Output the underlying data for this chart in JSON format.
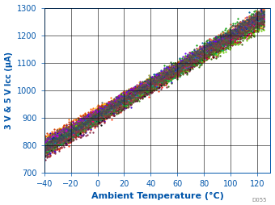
{
  "title": "",
  "xlabel": "Ambient Temperature (°C)",
  "ylabel": "3 V & 5 V Iᴄᴄ (μA)",
  "xlim": [
    -40,
    130
  ],
  "ylim": [
    700,
    1300
  ],
  "xticks": [
    -40,
    -20,
    0,
    20,
    40,
    60,
    80,
    100,
    120
  ],
  "yticks": [
    700,
    800,
    900,
    1000,
    1100,
    1200,
    1300
  ],
  "num_traces": 50,
  "temp_range": [
    -40,
    125
  ],
  "icc_at_25_mean": 975,
  "icc_slope_mean": 2.85,
  "icc_spread": 25,
  "noise_sigma": 6,
  "colors": [
    "#CC0000",
    "#FF0000",
    "#FF3300",
    "#FF6600",
    "#FF9900",
    "#FFCC00",
    "#999900",
    "#666600",
    "#336600",
    "#006600",
    "#009900",
    "#00CC00",
    "#006633",
    "#006666",
    "#006699",
    "#0066CC",
    "#0000CC",
    "#0000FF",
    "#3300CC",
    "#660099",
    "#990066",
    "#CC0033",
    "#993300",
    "#CC6600",
    "#999933",
    "#336633",
    "#003366",
    "#330066",
    "#660033",
    "#000000",
    "#CC3300",
    "#FF6633",
    "#CCCC00",
    "#66CC00",
    "#00CC66",
    "#00CCCC",
    "#0066FF",
    "#6600FF",
    "#CC00CC",
    "#FF0066",
    "#804020",
    "#208040",
    "#204080",
    "#802040",
    "#408020",
    "#604040",
    "#406040",
    "#404060",
    "#606040",
    "#804040"
  ],
  "markersize": 1.2,
  "watermark": "D055",
  "xlabel_fontsize": 8,
  "ylabel_fontsize": 7,
  "tick_fontsize": 7
}
